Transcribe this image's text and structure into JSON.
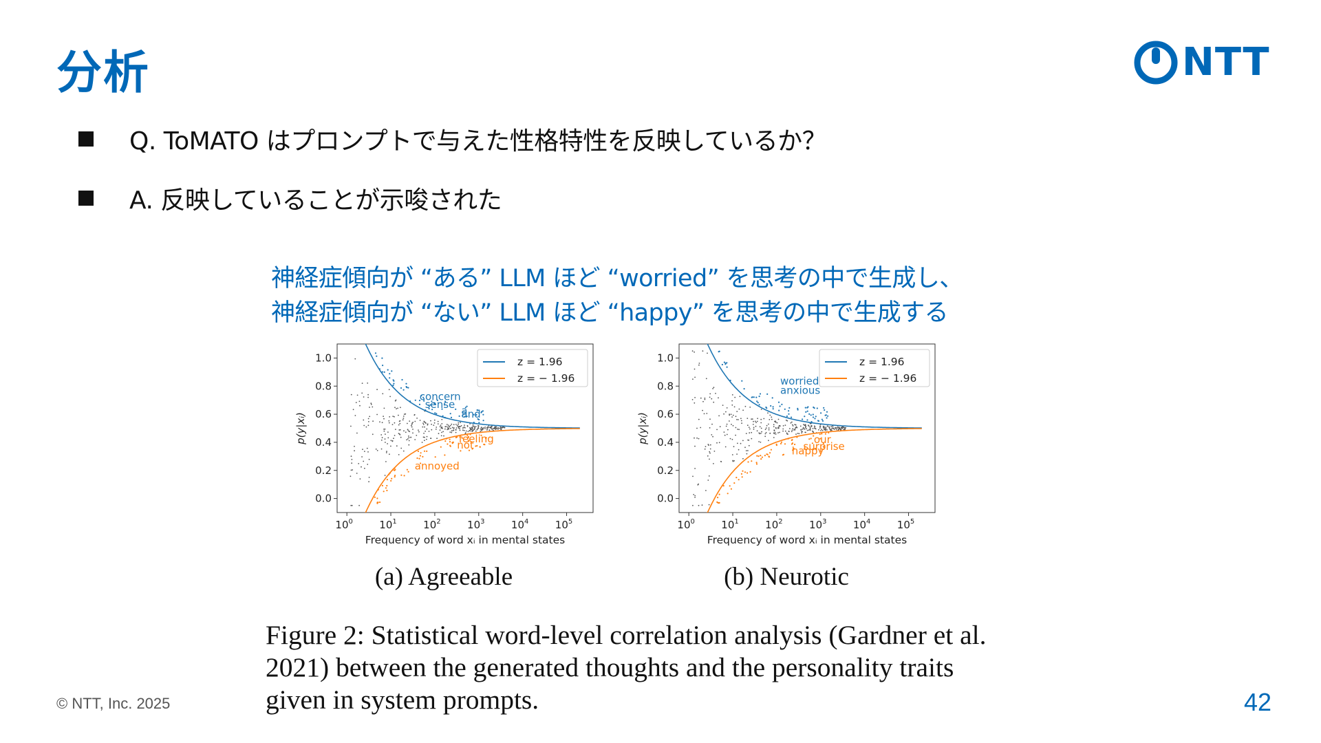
{
  "slide": {
    "title": "分析",
    "logo_text": "NTT",
    "bullets": [
      "Q. ToMATO はプロンプトで与えた性格特性を反映しているか？",
      "A. 反映していることが示唆された"
    ],
    "callout_lines": [
      "神経症傾向が “ある” LLM ほど “worried” を思考の中で生成し、",
      "神経症傾向が “ない” LLM ほど “happy” を思考の中で生成する"
    ],
    "figure_caption": "Figure 2: Statistical word-level correlation analysis (Gardner et al. 2021) between the generated thoughts and the personality traits given in system prompts.",
    "footer": "© NTT, Inc.  2025",
    "page_number": "42"
  },
  "colors": {
    "brand_blue": "#0068b7",
    "series_pos": "#1f77b4",
    "series_neg": "#ff7f0e",
    "points_gray": "#555555"
  },
  "chart_data": [
    {
      "type": "scatter",
      "subtitle": "(a) Agreeable",
      "xlabel": "Frequency of word x_i in mental states",
      "ylabel": "p(y|x_i)",
      "xscale": "log",
      "xlim": [
        0.6,
        400000
      ],
      "ylim": [
        -0.1,
        1.1
      ],
      "xticks": [
        1,
        10,
        100,
        1000,
        10000,
        100000
      ],
      "xtick_labels": [
        {
          "base": "10",
          "exp": "0"
        },
        {
          "base": "10",
          "exp": "1"
        },
        {
          "base": "10",
          "exp": "2"
        },
        {
          "base": "10",
          "exp": "3"
        },
        {
          "base": "10",
          "exp": "4"
        },
        {
          "base": "10",
          "exp": "5"
        }
      ],
      "yticks": [
        0.0,
        0.2,
        0.4,
        0.6,
        0.8,
        1.0
      ],
      "ytick_labels": [
        "0.0",
        "0.2",
        "0.4",
        "0.6",
        "0.8",
        "1.0"
      ],
      "series": [
        {
          "name": "z = 1.96",
          "color": "#1f77b4",
          "z": 1.96
        },
        {
          "name": "z = − 1.96",
          "color": "#ff7f0e",
          "z": -1.96
        }
      ],
      "legend": "top-right",
      "word_labels": [
        {
          "text": "concern",
          "x": 45,
          "y": 0.7,
          "color": "#1f77b4"
        },
        {
          "text": "sense",
          "x": 60,
          "y": 0.645,
          "color": "#1f77b4"
        },
        {
          "text": "and",
          "x": 400,
          "y": 0.575,
          "color": "#1f77b4"
        },
        {
          "text": "a",
          "x": 400,
          "y": 0.6,
          "color": "#1f77b4"
        },
        {
          "text": "feeling",
          "x": 350,
          "y": 0.4,
          "color": "#ff7f0e"
        },
        {
          "text": "not",
          "x": 320,
          "y": 0.355,
          "color": "#ff7f0e"
        },
        {
          "text": "annoyed",
          "x": 35,
          "y": 0.205,
          "color": "#ff7f0e"
        }
      ]
    },
    {
      "type": "scatter",
      "subtitle": "(b) Neurotic",
      "xlabel": "Frequency of word x_i in mental states",
      "ylabel": "p(y|x_i)",
      "xscale": "log",
      "xlim": [
        0.6,
        400000
      ],
      "ylim": [
        -0.1,
        1.1
      ],
      "xticks": [
        1,
        10,
        100,
        1000,
        10000,
        100000
      ],
      "xtick_labels": [
        {
          "base": "10",
          "exp": "0"
        },
        {
          "base": "10",
          "exp": "1"
        },
        {
          "base": "10",
          "exp": "2"
        },
        {
          "base": "10",
          "exp": "3"
        },
        {
          "base": "10",
          "exp": "4"
        },
        {
          "base": "10",
          "exp": "5"
        }
      ],
      "yticks": [
        0.0,
        0.2,
        0.4,
        0.6,
        0.8,
        1.0
      ],
      "ytick_labels": [
        "0.0",
        "0.2",
        "0.4",
        "0.6",
        "0.8",
        "1.0"
      ],
      "series": [
        {
          "name": "z = 1.96",
          "color": "#1f77b4",
          "z": 1.96
        },
        {
          "name": "z = − 1.96",
          "color": "#ff7f0e",
          "z": -1.96
        }
      ],
      "legend": "top-right",
      "word_labels": [
        {
          "text": "worried",
          "x": 120,
          "y": 0.81,
          "color": "#1f77b4"
        },
        {
          "text": "anxious",
          "x": 120,
          "y": 0.745,
          "color": "#1f77b4"
        },
        {
          "text": "our",
          "x": 700,
          "y": 0.395,
          "color": "#ff7f0e"
        },
        {
          "text": "surprise",
          "x": 400,
          "y": 0.345,
          "color": "#ff7f0e"
        },
        {
          "text": "happy",
          "x": 220,
          "y": 0.315,
          "color": "#ff7f0e"
        }
      ]
    }
  ]
}
